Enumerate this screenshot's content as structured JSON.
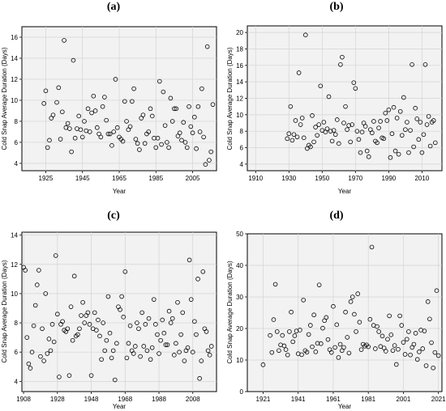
{
  "panels": [
    {
      "label": "(a)"
    },
    {
      "label": "(b)"
    },
    {
      "label": "(c)"
    },
    {
      "label": "(d)"
    }
  ],
  "chart_data": [
    {
      "type": "scatter",
      "panel": "(a)",
      "xlabel": "Year",
      "ylabel": "Cold Snap Average Duration (Days)",
      "xlim": [
        1912,
        2018
      ],
      "ylim": [
        3.3,
        17.0
      ],
      "xticks": [
        1925,
        1945,
        1965,
        1985,
        2005
      ],
      "yticks": [
        4,
        6,
        8,
        10,
        12,
        14,
        16
      ],
      "grid": true,
      "x": [
        1924,
        1925,
        1926,
        1927,
        1928,
        1929,
        1931,
        1932,
        1933,
        1934,
        1935,
        1936,
        1937,
        1938,
        1939,
        1940,
        1941,
        1942,
        1943,
        1944,
        1945,
        1946,
        1947,
        1948,
        1949,
        1950,
        1951,
        1952,
        1953,
        1954,
        1955,
        1956,
        1957,
        1958,
        1959,
        1960,
        1961,
        1962,
        1963,
        1964,
        1965,
        1966,
        1967,
        1968,
        1969,
        1970,
        1971,
        1972,
        1973,
        1974,
        1975,
        1976,
        1977,
        1978,
        1979,
        1980,
        1981,
        1982,
        1983,
        1984,
        1985,
        1986,
        1987,
        1988,
        1989,
        1990,
        1991,
        1992,
        1993,
        1994,
        1995,
        1996,
        1997,
        1998,
        1999,
        2000,
        2001,
        2002,
        2003,
        2004,
        2005,
        2006,
        2007,
        2008,
        2009,
        2010,
        2011,
        2012,
        2013,
        2014,
        2015,
        2016
      ],
      "y": [
        9.7,
        10.9,
        5.5,
        6.2,
        8.3,
        8.6,
        9.8,
        11.2,
        6.3,
        8.9,
        15.7,
        7.4,
        7.8,
        7.3,
        5.1,
        13.8,
        6.4,
        7.3,
        8.5,
        7.2,
        6.5,
        8.0,
        7.1,
        9.2,
        7.0,
        8.8,
        10.4,
        9.0,
        7.4,
        6.8,
        6.5,
        9.4,
        10.3,
        8.1,
        6.8,
        6.8,
        5.7,
        7.0,
        12.0,
        7.4,
        6.5,
        6.3,
        6.1,
        9.9,
        8.0,
        7.2,
        7.5,
        9.9,
        11.1,
        6.3,
        5.9,
        5.3,
        8.3,
        8.6,
        5.9,
        6.8,
        7.0,
        9.2,
        8.5,
        6.4,
        5.5,
        6.4,
        11.8,
        5.8,
        10.8,
        7.6,
        6.0,
        5.5,
        10.2,
        8.0,
        9.2,
        9.2,
        6.6,
        6.9,
        6.2,
        7.9,
        6.0,
        5.5,
        9.4,
        7.5,
        6.9,
        8.4,
        5.4,
        9.4,
        7.0,
        11.1,
        6.5,
        3.9,
        15.1,
        4.3,
        5.1,
        9.6
      ]
    },
    {
      "type": "scatter",
      "panel": "(b)",
      "xlabel": "Year",
      "ylabel": "Cold Snap Average Duration (Days)",
      "xlim": [
        1905,
        2022
      ],
      "ylim": [
        3.2,
        20.8
      ],
      "xticks": [
        1910,
        1930,
        1950,
        1970,
        1990,
        2010
      ],
      "yticks": [
        4,
        6,
        8,
        10,
        12,
        14,
        16,
        18,
        20
      ],
      "grid": true,
      "x": [
        1929,
        1930,
        1931,
        1932,
        1933,
        1934,
        1935,
        1936,
        1937,
        1938,
        1939,
        1940,
        1941,
        1942,
        1943,
        1944,
        1945,
        1946,
        1947,
        1948,
        1949,
        1950,
        1951,
        1952,
        1953,
        1954,
        1955,
        1956,
        1957,
        1958,
        1959,
        1960,
        1961,
        1962,
        1963,
        1964,
        1965,
        1966,
        1967,
        1968,
        1969,
        1970,
        1971,
        1972,
        1973,
        1974,
        1975,
        1976,
        1977,
        1978,
        1979,
        1980,
        1981,
        1982,
        1983,
        1984,
        1985,
        1986,
        1987,
        1988,
        1989,
        1990,
        1991,
        1992,
        1993,
        1994,
        1995,
        1996,
        1997,
        1998,
        1999,
        2000,
        2001,
        2002,
        2003,
        2004,
        2005,
        2006,
        2007,
        2008,
        2009,
        2010,
        2011,
        2012,
        2013,
        2014,
        2015,
        2016,
        2017,
        2018
      ],
      "y": [
        7.1,
        7.7,
        11.0,
        6.9,
        7.6,
        9.3,
        7.3,
        15.1,
        8.8,
        9.6,
        7.2,
        19.7,
        5.9,
        6.3,
        6.1,
        9.9,
        6.7,
        8.5,
        7.5,
        8.8,
        13.5,
        8.1,
        9.1,
        7.9,
        8.3,
        12.2,
        8.0,
        6.8,
        8.1,
        7.6,
        9.4,
        6.5,
        16.1,
        17.0,
        9.0,
        11.0,
        8.2,
        8.7,
        6.7,
        8.8,
        13.9,
        13.2,
        8.0,
        7.0,
        5.4,
        7.9,
        9.0,
        8.6,
        5.6,
        4.9,
        8.2,
        7.8,
        9.2,
        6.8,
        6.6,
        8.4,
        9.2,
        7.2,
        7.1,
        10.2,
        9.3,
        10.6,
        4.8,
        7.7,
        10.9,
        5.6,
        9.6,
        5.2,
        10.4,
        7.5,
        12.1,
        8.2,
        9.1,
        5.4,
        8.1,
        16.1,
        6.1,
        10.8,
        9.5,
        7.0,
        9.1,
        5.4,
        7.6,
        16.1,
        8.8,
        9.8,
        6.2,
        9.1,
        9.3,
        6.6
      ]
    },
    {
      "type": "scatter",
      "panel": "(c)",
      "xlabel": "Year",
      "ylabel": "Cold Snap Average Duration (Days)",
      "xlim": [
        1907,
        2022
      ],
      "ylim": [
        3.3,
        14.2
      ],
      "xticks": [
        1908,
        1928,
        1948,
        1968,
        1988,
        2008
      ],
      "yticks": [
        4,
        6,
        8,
        10,
        12,
        14
      ],
      "grid": true,
      "x": [
        1908,
        1909,
        1910,
        1911,
        1912,
        1913,
        1914,
        1915,
        1916,
        1917,
        1918,
        1919,
        1920,
        1921,
        1922,
        1923,
        1924,
        1925,
        1926,
        1927,
        1928,
        1929,
        1930,
        1931,
        1932,
        1933,
        1934,
        1935,
        1936,
        1937,
        1938,
        1939,
        1940,
        1941,
        1942,
        1943,
        1944,
        1945,
        1946,
        1947,
        1948,
        1949,
        1950,
        1951,
        1952,
        1953,
        1954,
        1955,
        1956,
        1957,
        1958,
        1959,
        1960,
        1961,
        1962,
        1963,
        1964,
        1965,
        1966,
        1967,
        1968,
        1969,
        1970,
        1971,
        1972,
        1973,
        1974,
        1975,
        1976,
        1977,
        1978,
        1979,
        1980,
        1981,
        1982,
        1983,
        1984,
        1985,
        1986,
        1987,
        1988,
        1989,
        1990,
        1991,
        1992,
        1993,
        1994,
        1995,
        1996,
        1997,
        1998,
        1999,
        2000,
        2001,
        2002,
        2003,
        2004,
        2005,
        2006,
        2007,
        2008,
        2009,
        2010,
        2011,
        2012,
        2013,
        2014,
        2015,
        2016,
        2017,
        2018,
        2019
      ],
      "y": [
        11.8,
        11.6,
        7.0,
        5.2,
        4.9,
        6.0,
        7.8,
        9.2,
        10.6,
        11.6,
        5.7,
        7.6,
        5.4,
        10.0,
        5.9,
        6.9,
        6.1,
        7.9,
        6.7,
        12.6,
        8.6,
        4.3,
        7.9,
        8.1,
        7.5,
        7.4,
        7.6,
        4.4,
        9.1,
        6.8,
        11.2,
        7.1,
        7.2,
        7.6,
        8.5,
        9.4,
        8.0,
        8.5,
        8.7,
        7.9,
        4.4,
        7.6,
        8.7,
        7.5,
        8.2,
        7.1,
        5.5,
        8.0,
        6.1,
        6.8,
        9.8,
        7.3,
        5.6,
        6.1,
        4.1,
        6.6,
        9.1,
        8.9,
        9.8,
        8.4,
        11.5,
        5.6,
        6.6,
        7.8,
        6.1,
        5.9,
        6.4,
        8.0,
        7.6,
        5.7,
        8.7,
        6.4,
        7.9,
        6.1,
        8.3,
        5.5,
        6.3,
        9.6,
        7.9,
        7.2,
        5.9,
        6.8,
        8.2,
        7.3,
        6.5,
        6.5,
        8.8,
        8.0,
        8.3,
        5.8,
        6.6,
        9.4,
        6.0,
        7.2,
        8.7,
        5.4,
        6.1,
        6.3,
        12.3,
        9.6,
        6.0,
        8.1,
        7.2,
        11.0,
        4.2,
        5.4,
        11.5,
        7.6,
        7.4,
        6.1,
        5.8,
        6.4
      ]
    },
    {
      "type": "scatter",
      "panel": "(d)",
      "xlabel": "Year",
      "ylabel": "Cold Snap Average Duration (Days)",
      "xlim": [
        1912,
        2023
      ],
      "ylim": [
        0,
        50
      ],
      "xticks": [
        1921,
        1941,
        1961,
        1981,
        2001,
        2021
      ],
      "yticks": [
        0,
        10,
        20,
        30,
        40,
        50
      ],
      "grid": true,
      "x": [
        1921,
        1925,
        1926,
        1927,
        1928,
        1929,
        1930,
        1931,
        1932,
        1933,
        1934,
        1935,
        1936,
        1937,
        1938,
        1939,
        1940,
        1941,
        1942,
        1943,
        1944,
        1945,
        1946,
        1947,
        1948,
        1949,
        1950,
        1951,
        1952,
        1953,
        1954,
        1955,
        1956,
        1957,
        1958,
        1959,
        1960,
        1961,
        1962,
        1963,
        1964,
        1965,
        1966,
        1967,
        1968,
        1969,
        1970,
        1971,
        1972,
        1973,
        1974,
        1975,
        1976,
        1977,
        1978,
        1979,
        1980,
        1981,
        1982,
        1983,
        1984,
        1985,
        1986,
        1987,
        1988,
        1989,
        1990,
        1991,
        1992,
        1993,
        1994,
        1995,
        1996,
        1997,
        1998,
        1999,
        2000,
        2001,
        2002,
        2003,
        2004,
        2005,
        2006,
        2007,
        2008,
        2009,
        2010,
        2011,
        2012,
        2013,
        2014,
        2015,
        2016,
        2017,
        2018,
        2019,
        2020,
        2021
      ],
      "y": [
        8.5,
        17.8,
        12.4,
        22.8,
        34.0,
        19.0,
        13.0,
        14.8,
        17.8,
        14.5,
        13.3,
        11.6,
        19.0,
        25.2,
        15.8,
        17.7,
        19.2,
        12.0,
        19.5,
        11.7,
        29.0,
        13.0,
        12.5,
        18.1,
        21.0,
        14.2,
        24.3,
        12.6,
        15.3,
        33.8,
        15.2,
        20.1,
        22.5,
        23.5,
        16.5,
        13.3,
        12.4,
        27.0,
        14.0,
        21.2,
        10.8,
        15.0,
        13.0,
        14.0,
        25.2,
        17.2,
        12.2,
        28.5,
        30.0,
        24.5,
        19.0,
        31.0,
        22.0,
        13.3,
        15.0,
        14.4,
        14.8,
        14.2,
        22.9,
        45.8,
        21.0,
        13.6,
        20.6,
        19.0,
        14.3,
        17.6,
        13.8,
        12.8,
        16.6,
        24.0,
        18.0,
        13.0,
        14.6,
        8.6,
        13.4,
        24.0,
        21.0,
        15.6,
        11.8,
        16.6,
        19.0,
        11.6,
        14.0,
        15.0,
        18.5,
        10.2,
        12.6,
        19.5,
        13.6,
        19.2,
        8.2,
        28.5,
        23.0,
        15.5,
        7.5,
        12.4,
        32.0,
        11.4
      ]
    }
  ]
}
